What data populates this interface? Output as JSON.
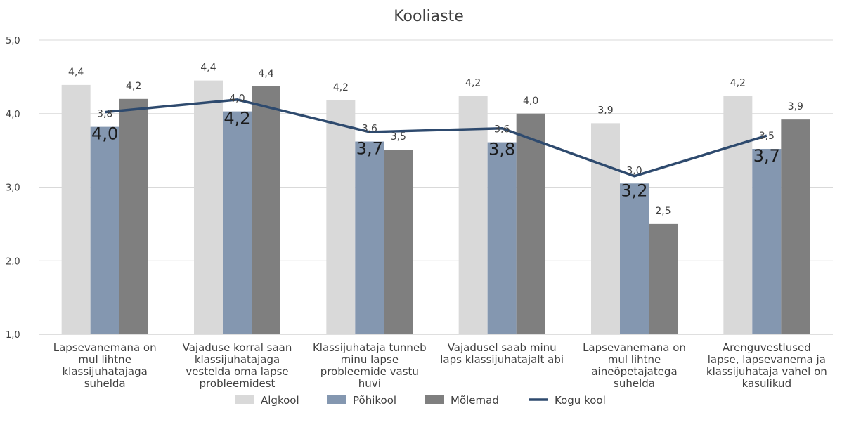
{
  "chart_data": {
    "type": "bar",
    "title": "Kooliaste",
    "xlabel": "",
    "ylabel": "",
    "ylim": [
      1.0,
      5.0
    ],
    "yticks": [
      "1,0",
      "2,0",
      "3,0",
      "4,0",
      "5,0"
    ],
    "ytick_values": [
      1.0,
      2.0,
      3.0,
      4.0,
      5.0
    ],
    "grid": true,
    "legend_position": "bottom",
    "categories": [
      [
        "Lapsevanemana on",
        "mul lihtne",
        "klassijuhatajaga",
        "suhelda"
      ],
      [
        "Vajaduse korral saan",
        "klassijuhatajaga",
        "vestelda oma lapse",
        "probleemidest"
      ],
      [
        "Klassijuhataja tunneb",
        "minu lapse",
        "probleemide vastu",
        "huvi"
      ],
      [
        "Vajadusel saab minu",
        "laps klassijuhatajalt abi"
      ],
      [
        "Lapsevanemana on",
        "mul lihtne",
        "aineõpetajatega",
        "suhelda"
      ],
      [
        "Arenguvestlused",
        "lapse, lapsevanema ja",
        "klassijuhataja vahel on",
        "kasulikud"
      ]
    ],
    "series": [
      {
        "name": "Algkool",
        "kind": "bar",
        "color": "#d9d9d9",
        "values": [
          4.39,
          4.45,
          4.18,
          4.24,
          3.87,
          4.24
        ],
        "labels": [
          "4,4",
          "4,4",
          "4,2",
          "4,2",
          "3,9",
          "4,2"
        ]
      },
      {
        "name": "Põhikool",
        "kind": "bar",
        "color": "#8497b0",
        "values": [
          3.82,
          4.03,
          3.62,
          3.61,
          3.05,
          3.52
        ],
        "labels": [
          "3,8",
          "4,0",
          "3,6",
          "3,6",
          "3,0",
          "3,5"
        ],
        "secondary_labels": [
          "4,0",
          "4,2",
          "3,7",
          "3,8",
          "3,2",
          "3,7"
        ]
      },
      {
        "name": "Mõlemad",
        "kind": "bar",
        "color": "#7f7f7f",
        "values": [
          4.2,
          4.37,
          3.51,
          4.0,
          2.5,
          3.92
        ],
        "labels": [
          "4,2",
          "4,4",
          "3,5",
          "4,0",
          "2,5",
          "3,9"
        ]
      },
      {
        "name": "Kogu kool",
        "kind": "line",
        "color": "#2e4a6e",
        "values": [
          4.02,
          4.19,
          3.75,
          3.8,
          3.15,
          3.7
        ]
      }
    ]
  }
}
